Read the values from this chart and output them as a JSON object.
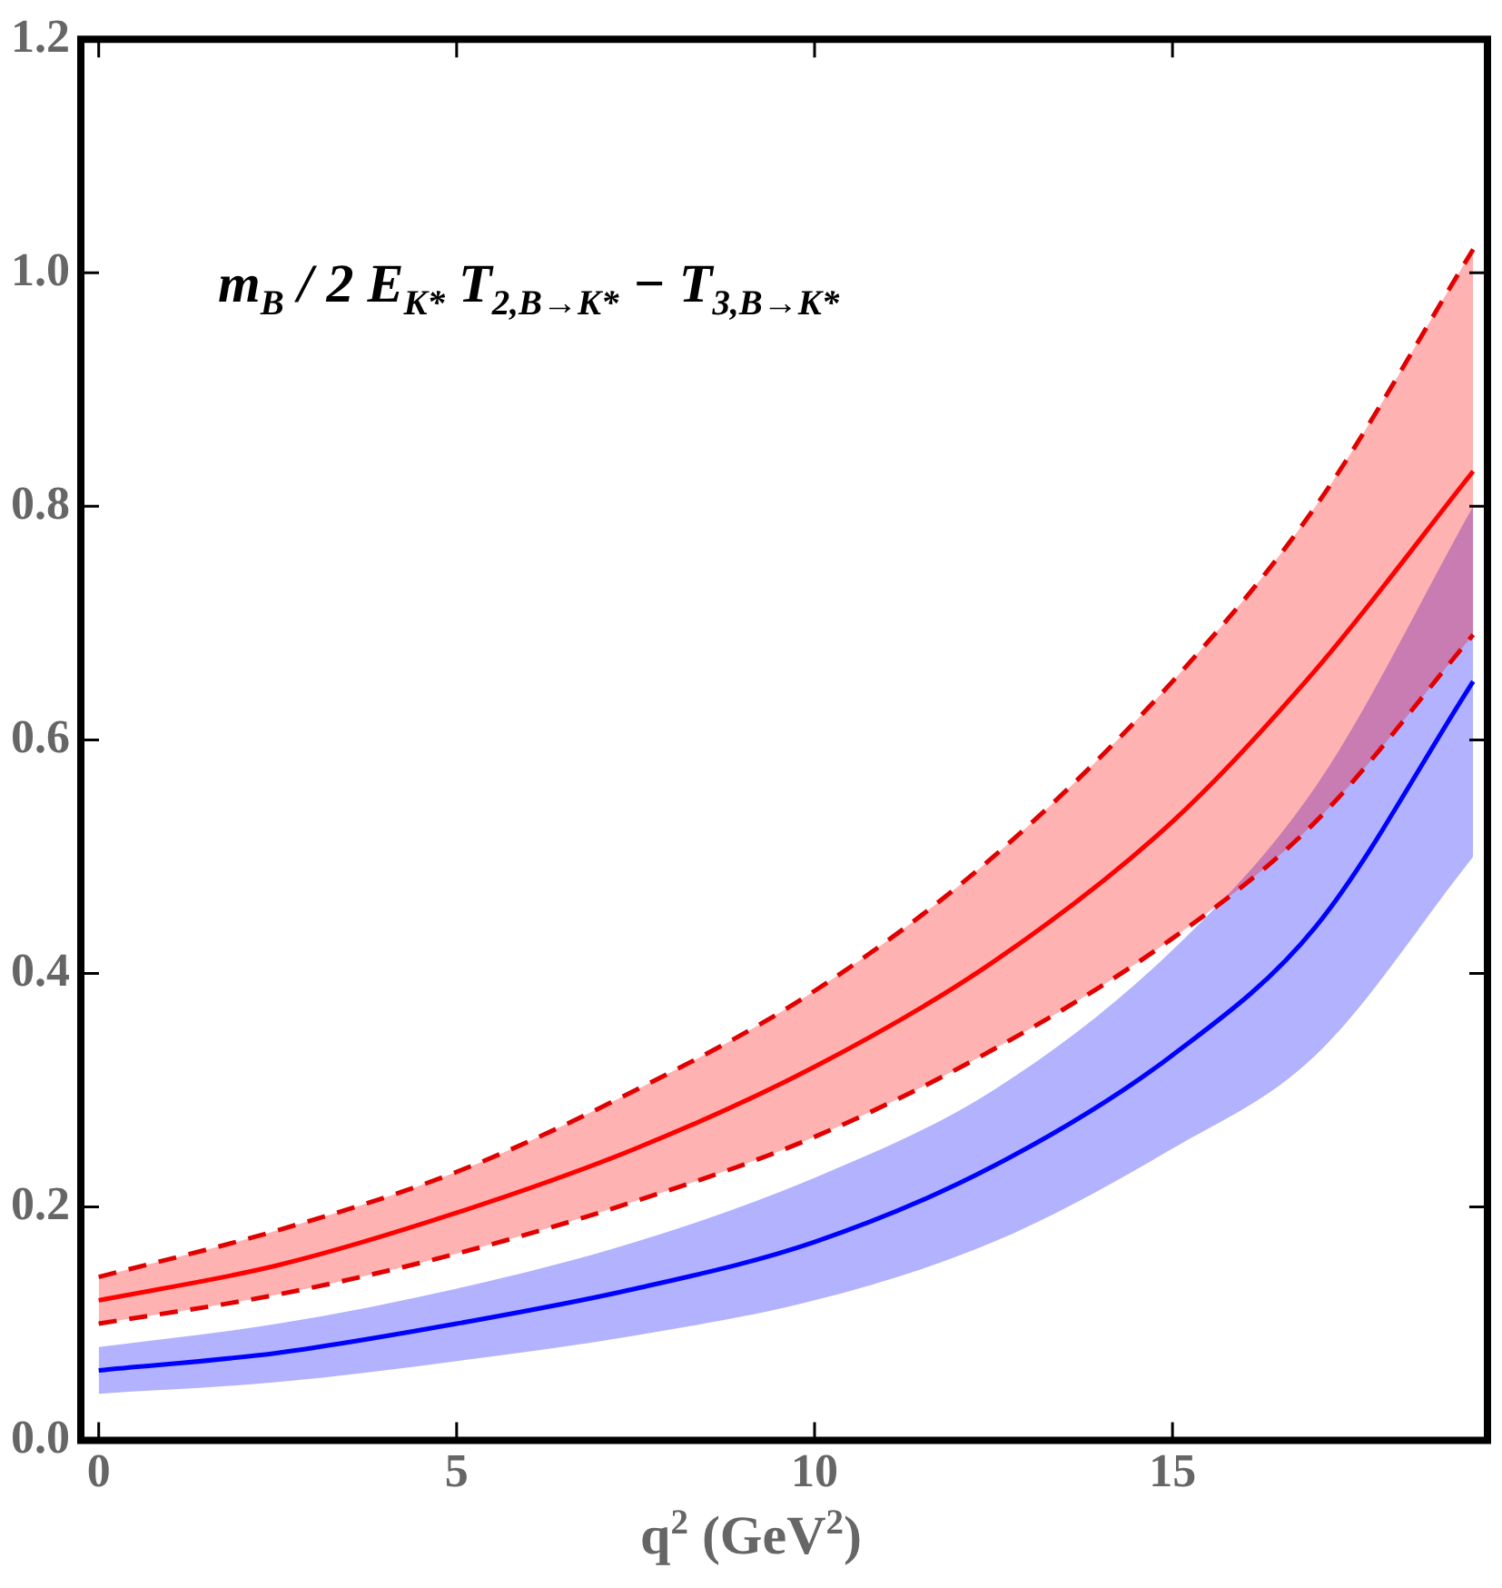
{
  "chart_data": {
    "type": "line",
    "xlabel": "q$^{2}$  (GeV$^{2}$)",
    "annotations": [
      "m$_{B}$ / 2 E$_{K*}$ T$_{2,B→K*}$ − T$_{3,B→K*}$"
    ],
    "x": [
      0,
      2.5,
      5,
      7.5,
      10,
      12.5,
      15,
      17,
      19.2
    ],
    "series": [
      {
        "color": "#ff0000",
        "line_style": "solid",
        "values": [
          0.12,
          0.15,
          0.195,
          0.25,
          0.32,
          0.41,
          0.53,
          0.66,
          0.83
        ],
        "lower": [
          0.1,
          0.125,
          0.16,
          0.205,
          0.26,
          0.335,
          0.43,
          0.53,
          0.69
        ],
        "upper": [
          0.14,
          0.18,
          0.23,
          0.3,
          0.385,
          0.5,
          0.65,
          0.8,
          1.02
        ]
      },
      {
        "color": "#dd0000",
        "line_style": "dashed",
        "values": [
          0.14,
          0.18,
          0.23,
          0.3,
          0.385,
          0.5,
          0.65,
          0.8,
          1.02
        ]
      },
      {
        "color": "#dd0000",
        "line_style": "dashed",
        "values": [
          0.1,
          0.125,
          0.16,
          0.205,
          0.26,
          0.335,
          0.43,
          0.53,
          0.69
        ]
      },
      {
        "color": "#0000ff",
        "line_style": "solid",
        "values": [
          0.06,
          0.075,
          0.1,
          0.13,
          0.17,
          0.235,
          0.33,
          0.44,
          0.65
        ],
        "lower": [
          0.04,
          0.05,
          0.068,
          0.09,
          0.12,
          0.17,
          0.25,
          0.33,
          0.5
        ],
        "upper": [
          0.08,
          0.1,
          0.13,
          0.17,
          0.225,
          0.3,
          0.42,
          0.56,
          0.8
        ]
      }
    ],
    "xlim": [
      -0.25,
      19.4
    ],
    "xticks": [
      0,
      5,
      10,
      15
    ],
    "ylim": [
      0,
      1.2
    ],
    "yticks": [
      {
        "value": 0,
        "label": "0.0"
      },
      {
        "value": 0.2,
        "label": "0.2"
      },
      {
        "value": 0.4,
        "label": "0.4"
      },
      {
        "value": 0.6,
        "label": "0.6"
      },
      {
        "value": 0.8,
        "label": "0.8"
      },
      {
        "value": 1,
        "label": "1.0"
      },
      {
        "value": 1.2,
        "label": "1.2"
      }
    ],
    "grid": false,
    "legend": false,
    "marker": "none"
  }
}
